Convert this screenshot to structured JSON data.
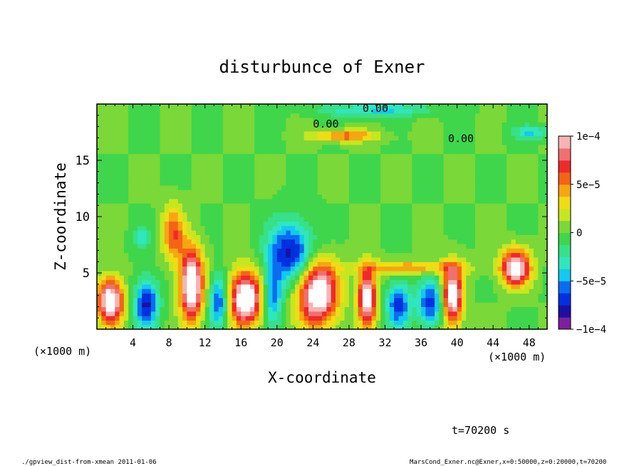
{
  "chart_data": {
    "type": "heatmap",
    "title": "disturbunce of Exner",
    "xlabel": "X-coordinate",
    "ylabel": "Z-coordinate",
    "x_units": "(×1000 m)",
    "x_units_right": "(×1000 m)",
    "xlim": [
      0,
      50
    ],
    "ylim": [
      0,
      20
    ],
    "x_ticks": [
      4,
      8,
      12,
      16,
      20,
      24,
      28,
      32,
      36,
      40,
      44,
      48
    ],
    "x_tick_labels": [
      "4",
      "8",
      "12",
      "16",
      "20",
      "24",
      "28",
      "32",
      "36",
      "40",
      "44",
      "48"
    ],
    "y_ticks": [
      5,
      10,
      15
    ],
    "y_tick_labels": [
      "5",
      "10",
      "15"
    ],
    "colorbar": {
      "min": -0.0001,
      "max": 0.0001,
      "ticks": [
        -0.0001,
        -5e-05,
        0,
        5e-05,
        0.0001
      ],
      "tick_labels": [
        "−1e−4",
        "−5e−5",
        "0",
        "5e−5",
        "1e−4"
      ],
      "colors": [
        "#7f1f9f",
        "#1d0fa0",
        "#0030e0",
        "#0a6cf0",
        "#14c8f0",
        "#30e6bc",
        "#37e089",
        "#3fd64c",
        "#7ad838",
        "#c8e620",
        "#f0dc16",
        "#f5a612",
        "#f46416",
        "#ef2a2a",
        "#f07070",
        "#f6b4b4"
      ]
    },
    "contour_labels": [
      "0.00",
      "0.00",
      "0.00"
    ],
    "blobs": [
      {
        "x": 1.5,
        "z": 2.5,
        "rx": 1.4,
        "rz": 2.0,
        "v": 0.00013
      },
      {
        "x": 5.5,
        "z": 2.3,
        "rx": 1.3,
        "rz": 2.2,
        "v": -8e-05
      },
      {
        "x": 8.5,
        "z": 8.5,
        "rx": 1.2,
        "rz": 2.5,
        "v": 6e-05
      },
      {
        "x": 10.5,
        "z": 4.0,
        "rx": 1.3,
        "rz": 3.2,
        "v": 0.00013
      },
      {
        "x": 13.5,
        "z": 2.5,
        "rx": 1.0,
        "rz": 2.3,
        "v": -7e-05
      },
      {
        "x": 16.5,
        "z": 2.8,
        "rx": 1.8,
        "rz": 2.4,
        "v": 0.00013
      },
      {
        "x": 19.5,
        "z": 3.0,
        "rx": 1.0,
        "rz": 2.6,
        "v": -6e-05
      },
      {
        "x": 21.5,
        "z": 6.8,
        "rx": 2.5,
        "rz": 2.8,
        "v": -8e-05
      },
      {
        "x": 24.5,
        "z": 3.2,
        "rx": 2.2,
        "rz": 2.8,
        "v": 0.00013
      },
      {
        "x": 27.5,
        "z": 17.2,
        "rx": 3.5,
        "rz": 0.5,
        "v": 6e-05
      },
      {
        "x": 30.0,
        "z": 2.8,
        "rx": 1.0,
        "rz": 2.6,
        "v": 0.00012
      },
      {
        "x": 33.5,
        "z": 2.2,
        "rx": 1.3,
        "rz": 2.0,
        "v": -7e-05
      },
      {
        "x": 37.0,
        "z": 2.3,
        "rx": 1.4,
        "rz": 2.0,
        "v": -7e-05
      },
      {
        "x": 39.5,
        "z": 3.0,
        "rx": 1.1,
        "rz": 2.6,
        "v": 0.00012
      },
      {
        "x": 46.5,
        "z": 5.5,
        "rx": 1.6,
        "rz": 1.6,
        "v": 0.00012
      },
      {
        "x": 48.3,
        "z": 17.5,
        "rx": 2.0,
        "rz": 0.6,
        "v": -4e-05
      },
      {
        "x": 5.0,
        "z": 8.2,
        "rx": 1.0,
        "rz": 1.0,
        "v": -3e-05
      },
      {
        "x": 31.0,
        "z": 19.5,
        "rx": 6.0,
        "rz": 0.6,
        "v": -4e-05
      },
      {
        "x": 35.0,
        "z": 5.5,
        "rx": 6.0,
        "rz": 0.6,
        "v": 5e-05
      }
    ]
  },
  "annotations": {
    "time_label": "t=70200 s",
    "footer_left": "./gpview_dist-from-xmean  2011-01-06",
    "footer_right": "MarsCond_Exner.nc@Exner,x=0:50000,z=0:20000,t=70200"
  }
}
